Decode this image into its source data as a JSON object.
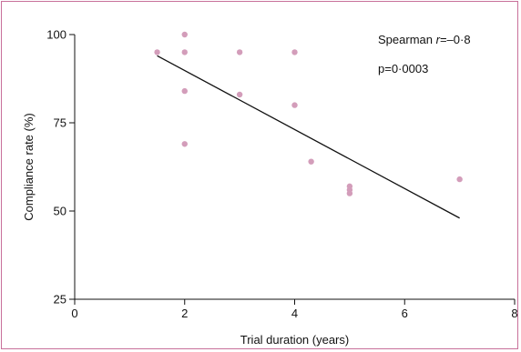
{
  "chart_data": {
    "type": "scatter",
    "title": "",
    "xlabel": "Trial duration (years)",
    "ylabel": "Compliance rate (%)",
    "xlim": [
      0,
      8
    ],
    "ylim": [
      25,
      100
    ],
    "xticks": [
      0,
      2,
      4,
      6,
      8
    ],
    "yticks": [
      25,
      50,
      75,
      100
    ],
    "grid": false,
    "legend": "none",
    "colors": {
      "points": "#d39dba",
      "line": "#111111",
      "frame": "#c8709a"
    },
    "points": [
      {
        "x": 1.5,
        "y": 95
      },
      {
        "x": 2,
        "y": 100
      },
      {
        "x": 2,
        "y": 95
      },
      {
        "x": 2,
        "y": 84
      },
      {
        "x": 2,
        "y": 69
      },
      {
        "x": 3,
        "y": 95
      },
      {
        "x": 3,
        "y": 83
      },
      {
        "x": 4,
        "y": 95
      },
      {
        "x": 4,
        "y": 80
      },
      {
        "x": 4.3,
        "y": 64
      },
      {
        "x": 5,
        "y": 57
      },
      {
        "x": 5,
        "y": 56
      },
      {
        "x": 5,
        "y": 55
      },
      {
        "x": 7,
        "y": 59
      }
    ],
    "fit_line": {
      "x": [
        1.5,
        7
      ],
      "y": [
        94,
        48
      ]
    },
    "annotations": {
      "spearman_prefix": "Spearman ",
      "spearman_r": "r",
      "spearman_value": "=–0·8",
      "p_value": "p=0·0003"
    }
  }
}
